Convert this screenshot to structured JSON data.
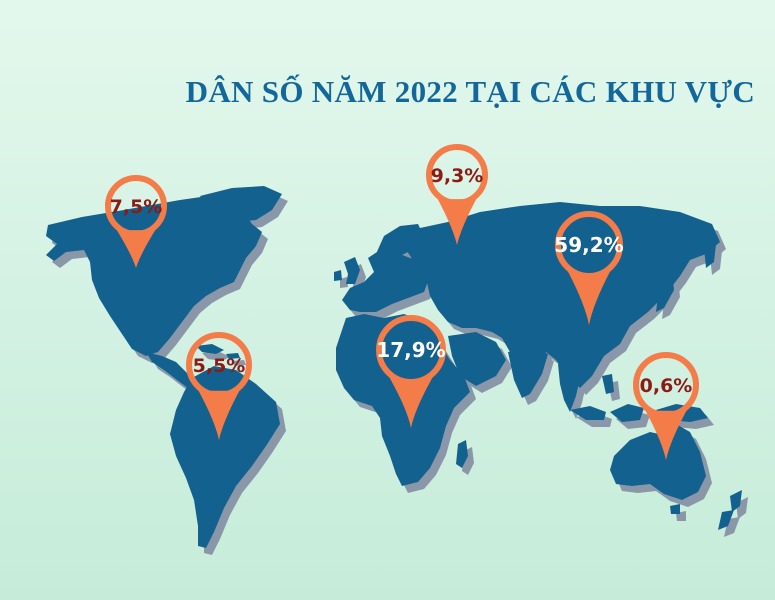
{
  "title": "DÂN SỐ NĂM 2022 TẠI CÁC KHU VỰC",
  "colors": {
    "title": "#13679a",
    "land": "#13618f",
    "shadow": "#8a97a8",
    "pin": "#f47c48",
    "label_dark": "#8b1b14",
    "label_light": "#ffffff"
  },
  "regions": [
    {
      "id": "north-america",
      "label": "7,5%"
    },
    {
      "id": "russia",
      "label": "9,3%"
    },
    {
      "id": "asia",
      "label": "59,2%"
    },
    {
      "id": "south-america",
      "label": "5,5%"
    },
    {
      "id": "africa",
      "label": "17,9%"
    },
    {
      "id": "oceania",
      "label": "0,6%"
    }
  ]
}
